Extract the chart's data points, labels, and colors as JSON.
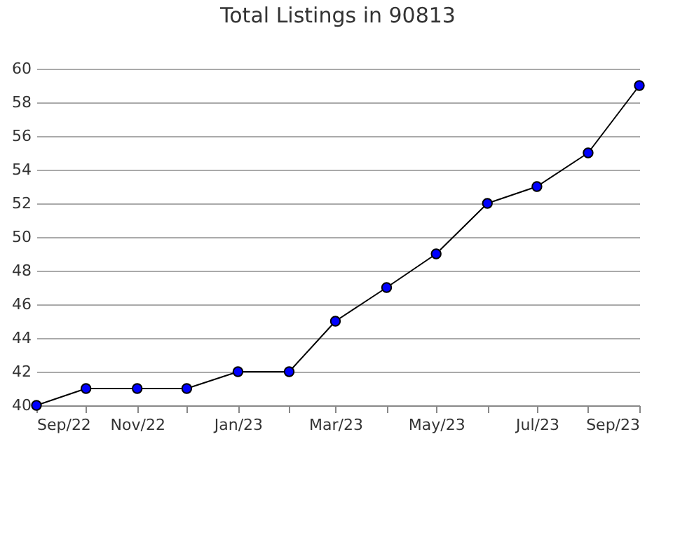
{
  "chart_data": {
    "type": "line",
    "title": "Total Listings in 90813",
    "x": [
      "2022-09",
      "2022-10",
      "2022-11",
      "2022-12",
      "2023-01",
      "2023-02",
      "2023-03",
      "2023-04",
      "2023-05",
      "2023-06",
      "2023-07",
      "2023-08",
      "2023-09"
    ],
    "series": [
      {
        "color": "#0000ff",
        "values": [
          40,
          41,
          41,
          41,
          42,
          42,
          45,
          47,
          49,
          52,
          53,
          55,
          59
        ]
      }
    ],
    "xlim": [
      "2022-09",
      "2023-09"
    ],
    "xticks": [
      {
        "value": "2022-09",
        "label": "Sep/22"
      },
      {
        "value": "2022-10",
        "label": null
      },
      {
        "value": "2022-11",
        "label": "Nov/22"
      },
      {
        "value": "2022-12",
        "label": null
      },
      {
        "value": "2023-01",
        "label": "Jan/23"
      },
      {
        "value": "2023-02",
        "label": null
      },
      {
        "value": "2023-03",
        "label": "Mar/23"
      },
      {
        "value": "2023-04",
        "label": null
      },
      {
        "value": "2023-05",
        "label": "May/23"
      },
      {
        "value": "2023-06",
        "label": null
      },
      {
        "value": "2023-07",
        "label": "Jul/23"
      },
      {
        "value": "2023-08",
        "label": null
      },
      {
        "value": "2023-09",
        "label": "Sep/23"
      }
    ],
    "ylim": [
      40,
      60
    ],
    "yticks": [
      40,
      42,
      44,
      46,
      48,
      50,
      52,
      54,
      56,
      58,
      60
    ],
    "grid": "y",
    "marker": "circle",
    "line_style": "solid"
  }
}
